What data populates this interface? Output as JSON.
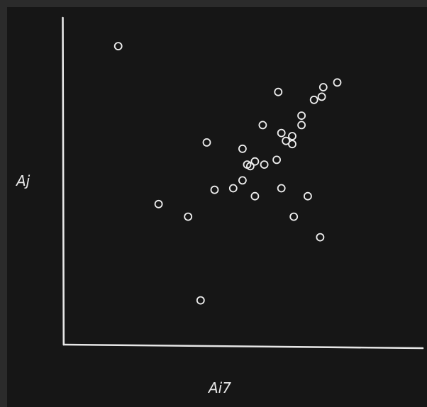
{
  "chart_data": {
    "type": "scatter",
    "title": "",
    "xlabel": "Ai7",
    "ylabel": "Aj",
    "grid": false,
    "legend": "none",
    "style": {
      "background": "#161616",
      "frame": "#2b2b2b",
      "ink": "#efefef"
    },
    "xlim": [
      -5.5,
      17.6
    ],
    "ylim": [
      -4.7,
      16.0
    ],
    "series": [
      {
        "points": [
          {
            "x": -2.0,
            "y": 14.2
          },
          {
            "x": 0.6,
            "y": 4.2
          },
          {
            "x": 2.5,
            "y": 3.4
          },
          {
            "x": 3.3,
            "y": -1.9
          },
          {
            "x": 3.7,
            "y": 8.1
          },
          {
            "x": 4.2,
            "y": 5.1
          },
          {
            "x": 5.4,
            "y": 5.2
          },
          {
            "x": 6.0,
            "y": 5.7
          },
          {
            "x": 6.0,
            "y": 7.7
          },
          {
            "x": 6.3,
            "y": 6.7
          },
          {
            "x": 6.5,
            "y": 6.6
          },
          {
            "x": 6.8,
            "y": 6.9
          },
          {
            "x": 6.8,
            "y": 4.7
          },
          {
            "x": 7.3,
            "y": 9.2
          },
          {
            "x": 7.4,
            "y": 6.7
          },
          {
            "x": 8.2,
            "y": 7.0
          },
          {
            "x": 8.3,
            "y": 11.3
          },
          {
            "x": 8.5,
            "y": 5.2
          },
          {
            "x": 8.5,
            "y": 8.7
          },
          {
            "x": 8.8,
            "y": 8.2
          },
          {
            "x": 9.2,
            "y": 8.0
          },
          {
            "x": 9.2,
            "y": 8.5
          },
          {
            "x": 9.3,
            "y": 3.4
          },
          {
            "x": 9.8,
            "y": 9.2
          },
          {
            "x": 9.8,
            "y": 9.8
          },
          {
            "x": 10.2,
            "y": 4.7
          },
          {
            "x": 10.6,
            "y": 10.8
          },
          {
            "x": 11.0,
            "y": 2.1
          },
          {
            "x": 11.1,
            "y": 11.0
          },
          {
            "x": 11.2,
            "y": 11.6
          },
          {
            "x": 12.1,
            "y": 11.9
          }
        ]
      }
    ]
  }
}
